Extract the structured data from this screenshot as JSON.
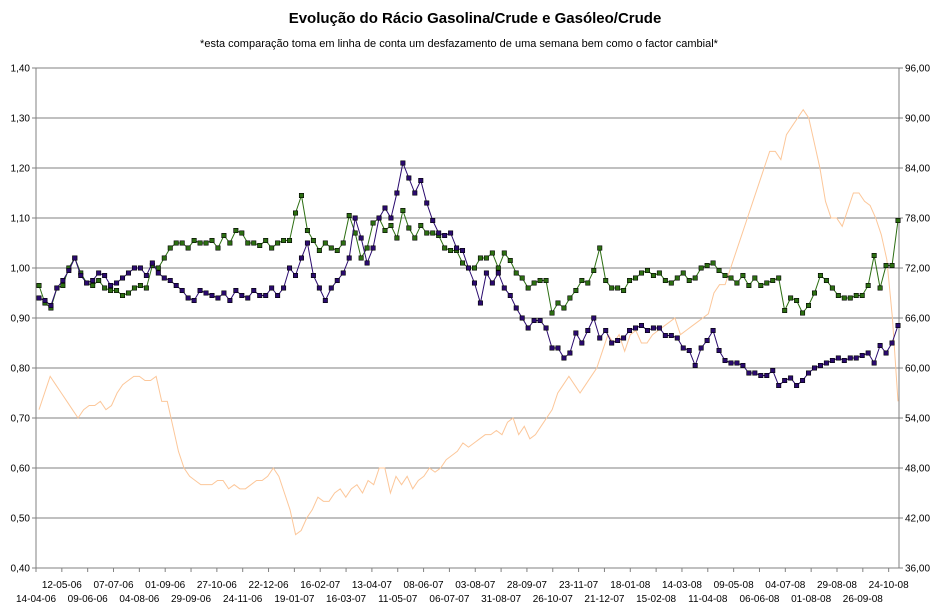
{
  "chart_data": {
    "type": "line",
    "title": "Evolução do Rácio Gasolina/Crude e Gasóleo/Crude",
    "subtitle": "*esta comparação toma em linha de conta um desfazamento de uma semana bem como o factor cambial*",
    "y_left": {
      "min": 0.4,
      "max": 1.4,
      "step": 0.1,
      "ticks": [
        "0,40",
        "0,50",
        "0,60",
        "0,70",
        "0,80",
        "0,90",
        "1,00",
        "1,10",
        "1,20",
        "1,30",
        "1,40"
      ]
    },
    "y_right": {
      "min": 36,
      "max": 96,
      "step": 6,
      "ticks": [
        "36,00",
        "42,00",
        "48,00",
        "54,00",
        "60,00",
        "66,00",
        "72,00",
        "78,00",
        "84,00",
        "90,00",
        "96,00"
      ]
    },
    "x_labels_top": [
      "12-05-06",
      "07-07-06",
      "01-09-06",
      "27-10-06",
      "22-12-06",
      "16-02-07",
      "13-04-07",
      "08-06-07",
      "03-08-07",
      "28-09-07",
      "23-11-07",
      "18-01-08",
      "14-03-08",
      "09-05-08",
      "04-07-08",
      "29-08-08",
      "24-10-08"
    ],
    "x_labels_bottom": [
      "14-04-06",
      "09-06-06",
      "04-08-06",
      "29-09-06",
      "24-11-06",
      "19-01-07",
      "16-03-07",
      "11-05-07",
      "06-07-07",
      "31-08-07",
      "26-10-07",
      "21-12-07",
      "15-02-08",
      "11-04-08",
      "06-06-08",
      "01-08-08",
      "26-09-08"
    ],
    "grid": true,
    "series": [
      {
        "axis": "left",
        "color": "#2a0a6e",
        "marker": "square",
        "values": [
          0.94,
          0.935,
          0.925,
          0.96,
          0.975,
          0.995,
          1.02,
          0.985,
          0.97,
          0.975,
          0.99,
          0.985,
          0.965,
          0.97,
          0.98,
          0.99,
          1.0,
          1.0,
          0.985,
          1.01,
          0.99,
          0.98,
          0.975,
          0.965,
          0.955,
          0.94,
          0.935,
          0.955,
          0.95,
          0.945,
          0.94,
          0.95,
          0.935,
          0.955,
          0.945,
          0.94,
          0.955,
          0.945,
          0.945,
          0.96,
          0.945,
          0.96,
          1.0,
          0.985,
          1.02,
          1.05,
          0.985,
          0.96,
          0.935,
          0.96,
          0.975,
          0.99,
          1.02,
          1.1,
          1.06,
          1.01,
          1.04,
          1.1,
          1.12,
          1.1,
          1.15,
          1.21,
          1.18,
          1.15,
          1.175,
          1.13,
          1.095,
          1.07,
          1.065,
          1.07,
          1.04,
          1.035,
          1.0,
          0.97,
          0.93,
          0.99,
          0.97,
          0.99,
          0.96,
          0.945,
          0.92,
          0.9,
          0.88,
          0.895,
          0.895,
          0.88,
          0.84,
          0.84,
          0.82,
          0.83,
          0.87,
          0.85,
          0.875,
          0.9,
          0.86,
          0.875,
          0.85,
          0.855,
          0.86,
          0.875,
          0.88,
          0.885,
          0.875,
          0.88,
          0.88,
          0.865,
          0.865,
          0.86,
          0.84,
          0.835,
          0.805,
          0.84,
          0.855,
          0.875,
          0.835,
          0.815,
          0.81,
          0.81,
          0.805,
          0.79,
          0.79,
          0.785,
          0.785,
          0.795,
          0.765,
          0.775,
          0.78,
          0.765,
          0.775,
          0.79,
          0.8,
          0.805,
          0.81,
          0.815,
          0.82,
          0.815,
          0.82,
          0.82,
          0.825,
          0.83,
          0.81,
          0.845,
          0.83,
          0.85,
          0.885
        ]
      },
      {
        "axis": "left",
        "color": "#2c6e12",
        "marker": "square",
        "values": [
          0.965,
          0.93,
          0.92,
          0.96,
          0.965,
          1.0,
          1.02,
          0.99,
          0.97,
          0.965,
          0.975,
          0.96,
          0.955,
          0.955,
          0.945,
          0.95,
          0.96,
          0.965,
          0.96,
          1.005,
          1.0,
          1.02,
          1.04,
          1.05,
          1.05,
          1.04,
          1.055,
          1.05,
          1.05,
          1.055,
          1.04,
          1.065,
          1.05,
          1.075,
          1.07,
          1.05,
          1.05,
          1.045,
          1.055,
          1.04,
          1.05,
          1.055,
          1.055,
          1.11,
          1.145,
          1.075,
          1.055,
          1.035,
          1.05,
          1.04,
          1.035,
          1.05,
          1.105,
          1.07,
          1.02,
          1.04,
          1.09,
          1.1,
          1.075,
          1.085,
          1.06,
          1.115,
          1.08,
          1.06,
          1.085,
          1.07,
          1.07,
          1.065,
          1.04,
          1.035,
          1.035,
          1.01,
          1.0,
          1.0,
          1.02,
          1.02,
          1.03,
          1.0,
          1.03,
          1.015,
          0.99,
          0.98,
          0.96,
          0.97,
          0.975,
          0.975,
          0.91,
          0.93,
          0.92,
          0.94,
          0.955,
          0.975,
          0.97,
          0.995,
          1.04,
          0.975,
          0.96,
          0.96,
          0.955,
          0.975,
          0.98,
          0.99,
          0.995,
          0.985,
          0.99,
          0.975,
          0.97,
          0.98,
          0.99,
          0.975,
          0.98,
          1.0,
          1.005,
          1.01,
          0.995,
          0.985,
          0.98,
          0.97,
          0.985,
          0.965,
          0.98,
          0.965,
          0.97,
          0.975,
          0.98,
          0.915,
          0.94,
          0.935,
          0.91,
          0.925,
          0.95,
          0.985,
          0.975,
          0.96,
          0.945,
          0.94,
          0.94,
          0.945,
          0.945,
          0.965,
          1.025,
          0.96,
          1.005,
          1.005,
          1.095
        ]
      },
      {
        "axis": "right",
        "color": "#fcc79a",
        "marker": "none",
        "values": [
          55,
          57,
          59,
          58,
          57,
          56,
          55,
          54,
          55,
          55.5,
          55.5,
          56,
          55,
          55.5,
          57,
          58,
          58.5,
          59,
          59,
          58.5,
          58.5,
          59,
          56,
          56,
          53,
          50,
          48,
          47,
          46.5,
          46,
          46,
          46,
          46.5,
          46.5,
          45.5,
          46,
          45.5,
          45.5,
          46,
          46.5,
          46.5,
          47,
          48,
          47,
          45,
          43,
          40,
          40.5,
          42,
          43,
          44.5,
          44,
          44,
          45,
          45.5,
          44.5,
          45.5,
          46,
          45,
          46.5,
          46,
          48,
          48,
          45,
          47,
          46,
          47,
          45.5,
          46.5,
          47,
          48,
          47.5,
          48,
          49,
          49.5,
          50,
          51,
          50.5,
          51,
          51.5,
          52,
          52,
          52.5,
          52,
          53.5,
          54,
          52,
          53,
          51.5,
          52,
          53,
          54,
          55,
          57,
          58,
          59,
          58,
          57,
          58,
          59,
          60,
          62,
          64,
          63,
          64,
          62,
          64,
          64.5,
          63,
          63,
          64,
          64.5,
          65,
          65.5,
          66,
          64,
          64.5,
          65,
          65.5,
          66,
          66.5,
          69,
          70,
          70,
          72,
          74,
          76,
          78,
          80,
          82,
          84,
          86,
          86,
          85,
          88,
          89,
          90,
          91,
          90,
          87,
          84,
          80,
          78,
          78,
          77,
          79,
          81,
          81,
          80,
          79.5,
          78,
          76,
          73,
          66,
          56
        ]
      }
    ]
  }
}
